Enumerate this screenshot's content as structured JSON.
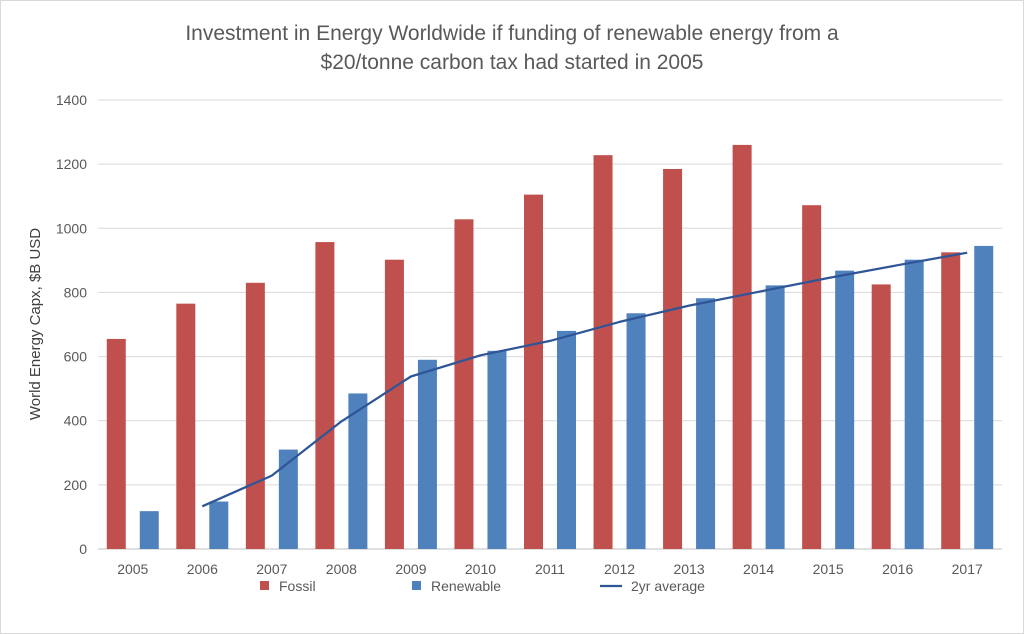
{
  "chart_data": {
    "type": "bar",
    "title_lines": [
      "Investment in Energy Worldwide if funding of renewable energy from a",
      "$20/tonne carbon tax had started in 2005"
    ],
    "xlabel": "",
    "ylabel": "World Energy Capx, $B USD",
    "ylim": [
      0,
      1400
    ],
    "yticks": [
      "0",
      "200",
      "400",
      "600",
      "800",
      "1000",
      "1200",
      "1400"
    ],
    "categories": [
      "2005",
      "2006",
      "2007",
      "2008",
      "2009",
      "2010",
      "2011",
      "2012",
      "2013",
      "2014",
      "2015",
      "2016",
      "2017"
    ],
    "series": [
      {
        "name": "Fossil",
        "kind": "bar",
        "color": "#c0504d",
        "values": [
          655,
          765,
          830,
          957,
          902,
          1028,
          1105,
          1228,
          1185,
          1260,
          1072,
          825,
          925
        ]
      },
      {
        "name": "Renewable",
        "kind": "bar",
        "color": "#4f81bd",
        "values": [
          118,
          148,
          310,
          485,
          590,
          618,
          680,
          735,
          782,
          822,
          868,
          902,
          945
        ]
      },
      {
        "name": "2yr average",
        "kind": "line",
        "color": "#2f5597",
        "values": [
          null,
          133,
          229,
          398,
          538,
          604,
          649,
          708,
          759,
          802,
          845,
          885,
          924
        ]
      }
    ],
    "grid": true,
    "legend_position": "bottom"
  }
}
